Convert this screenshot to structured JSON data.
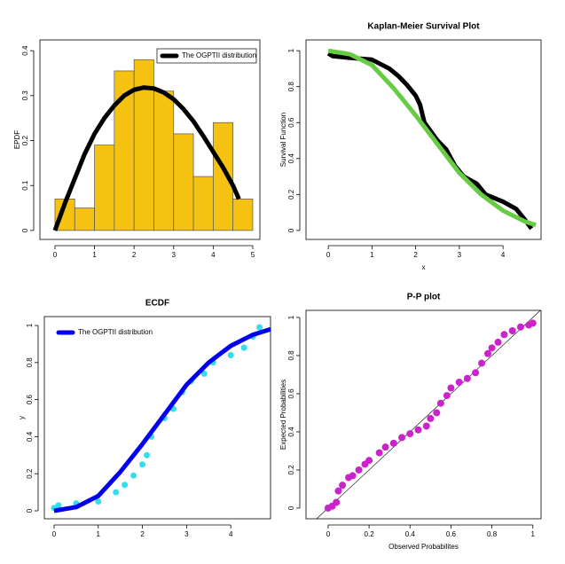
{
  "chart_data": [
    {
      "type": "histogram",
      "ylabel": "EPDF",
      "bins": [
        0,
        0.5,
        1,
        1.5,
        2,
        2.5,
        3,
        3.5,
        4,
        4.5,
        5
      ],
      "values": [
        0.07,
        0.05,
        0.19,
        0.355,
        0.38,
        0.31,
        0.215,
        0.12,
        0.24,
        0.07
      ],
      "color": "#f5c211",
      "series": [
        {
          "name": "The OGPTII distribution",
          "color": "#000000",
          "x": [
            0,
            0.25,
            0.5,
            0.75,
            1,
            1.25,
            1.5,
            1.75,
            2,
            2.25,
            2.5,
            2.75,
            3,
            3.25,
            3.5,
            3.75,
            4,
            4.25,
            4.5,
            4.65
          ],
          "values": [
            0,
            0.06,
            0.115,
            0.17,
            0.215,
            0.25,
            0.278,
            0.3,
            0.313,
            0.318,
            0.316,
            0.307,
            0.292,
            0.27,
            0.243,
            0.21,
            0.175,
            0.14,
            0.1,
            0.07
          ]
        }
      ],
      "legend": "top-right",
      "xlim": [
        -0.38,
        5.18
      ],
      "ylim": [
        -0.02,
        0.424
      ],
      "xticks": [
        0,
        1,
        2,
        3,
        4,
        5
      ],
      "yticks": [
        0,
        0.1,
        0.2,
        0.3,
        0.4
      ]
    },
    {
      "type": "line",
      "title": "Kaplan-Meier Survival Plot",
      "xlabel": "x",
      "ylabel": "Survival  Function",
      "series": [
        {
          "color": "#000000",
          "x": [
            0,
            0.1,
            0.5,
            1,
            1.4,
            1.6,
            1.8,
            2,
            2.1,
            2.2,
            2.5,
            2.7,
            2.9,
            3.1,
            3.4,
            3.6,
            4,
            4.3,
            4.5,
            4.65
          ],
          "values": [
            0.985,
            0.97,
            0.96,
            0.95,
            0.9,
            0.86,
            0.81,
            0.75,
            0.7,
            0.6,
            0.5,
            0.45,
            0.36,
            0.3,
            0.26,
            0.2,
            0.16,
            0.12,
            0.06,
            0.01
          ]
        },
        {
          "color": "#66cc44",
          "x": [
            0,
            0.5,
            1,
            1.5,
            2,
            2.5,
            3,
            3.5,
            4,
            4.5,
            4.75
          ],
          "values": [
            1,
            0.98,
            0.92,
            0.79,
            0.64,
            0.48,
            0.32,
            0.2,
            0.11,
            0.05,
            0.03
          ]
        }
      ],
      "xlim": [
        -0.51,
        4.87
      ],
      "ylim": [
        -0.05,
        1.06
      ],
      "xticks": [
        0,
        1,
        2,
        3,
        4
      ],
      "yticks": [
        0,
        0.2,
        0.4,
        0.6,
        0.8,
        1
      ]
    },
    {
      "type": "line",
      "title": "ECDF",
      "ylabel": "y",
      "series": [
        {
          "color": "#33ddee",
          "style": "points",
          "x": [
            0,
            0.1,
            0.5,
            1,
            1.4,
            1.6,
            1.8,
            2,
            2.1,
            2.2,
            2.5,
            2.7,
            2.9,
            3.1,
            3.4,
            3.6,
            4,
            4.3,
            4.5,
            4.65
          ],
          "values": [
            0.015,
            0.03,
            0.04,
            0.05,
            0.1,
            0.14,
            0.19,
            0.25,
            0.3,
            0.4,
            0.5,
            0.55,
            0.64,
            0.7,
            0.74,
            0.8,
            0.84,
            0.88,
            0.94,
            0.99
          ]
        },
        {
          "name": "The OGPTII distribution",
          "color": "#0000ee",
          "x": [
            0,
            0.5,
            1,
            1.5,
            2,
            2.5,
            3,
            3.5,
            4,
            4.5,
            4.9
          ],
          "values": [
            0,
            0.02,
            0.08,
            0.21,
            0.36,
            0.52,
            0.68,
            0.8,
            0.89,
            0.95,
            0.98
          ]
        }
      ],
      "legend": "top-left",
      "xlim": [
        -0.22,
        4.9
      ],
      "ylim": [
        -0.043,
        1.048
      ],
      "xticks": [
        0,
        1,
        2,
        3,
        4
      ],
      "yticks": [
        0,
        0.2,
        0.4,
        0.6,
        0.8,
        1
      ]
    },
    {
      "type": "scatter",
      "title": "P-P plot",
      "xlabel": "Observed Probabilites",
      "ylabel": "Expected Probabilities",
      "color": "#cc22cc",
      "x": [
        0,
        0.02,
        0.04,
        0.05,
        0.07,
        0.1,
        0.12,
        0.15,
        0.18,
        0.2,
        0.25,
        0.28,
        0.32,
        0.36,
        0.4,
        0.44,
        0.48,
        0.5,
        0.53,
        0.55,
        0.58,
        0.6,
        0.64,
        0.68,
        0.72,
        0.75,
        0.78,
        0.8,
        0.83,
        0.86,
        0.9,
        0.94,
        0.98,
        1
      ],
      "values": [
        0,
        0.01,
        0.03,
        0.09,
        0.12,
        0.16,
        0.17,
        0.2,
        0.23,
        0.25,
        0.29,
        0.32,
        0.34,
        0.37,
        0.39,
        0.41,
        0.43,
        0.47,
        0.5,
        0.55,
        0.59,
        0.63,
        0.66,
        0.68,
        0.71,
        0.76,
        0.81,
        0.84,
        0.87,
        0.91,
        0.93,
        0.95,
        0.96,
        0.97
      ],
      "xlim": [
        -0.108,
        1.04
      ],
      "ylim": [
        -0.056,
        1.037
      ],
      "xticks": [
        0,
        0.2,
        0.4,
        0.6,
        0.8,
        1
      ],
      "yticks": [
        0,
        0.2,
        0.4,
        0.6,
        0.8,
        1
      ]
    }
  ]
}
